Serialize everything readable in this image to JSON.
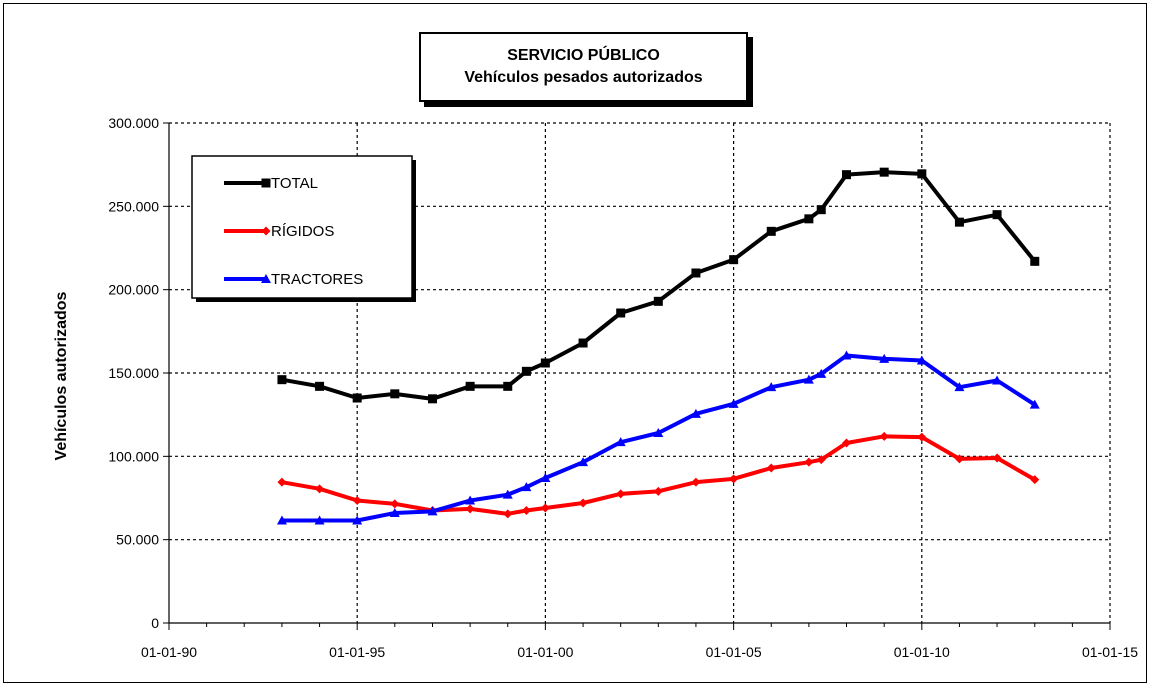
{
  "chart_data": {
    "type": "line",
    "title": "SERVICIO PÚBLICO",
    "subtitle": "Vehículos pesados autorizados",
    "ylabel": "Vehículos autorizados",
    "xlabel": "",
    "x_ticks": [
      "01-01-90",
      "01-01-95",
      "01-01-00",
      "01-01-05",
      "01-01-10",
      "01-01-15"
    ],
    "y_ticks": [
      "0",
      "50.000",
      "100.000",
      "150.000",
      "200.000",
      "250.000",
      "300.000"
    ],
    "xlim": [
      "1990-01-01",
      "2015-01-01"
    ],
    "ylim": [
      0,
      300000
    ],
    "grid": true,
    "legend_position": "top-left",
    "x": [
      "1993-01-01",
      "1994-01-01",
      "1995-01-01",
      "1996-01-01",
      "1997-01-01",
      "1998-01-01",
      "1999-01-01",
      "1999-07-01",
      "2000-01-01",
      "2001-01-01",
      "2002-01-01",
      "2003-01-01",
      "2004-01-01",
      "2005-01-01",
      "2006-01-01",
      "2007-01-01",
      "2007-05-01",
      "2008-01-01",
      "2009-01-01",
      "2010-01-01",
      "2011-01-01",
      "2012-01-01",
      "2013-01-01"
    ],
    "series": [
      {
        "name": "TOTAL",
        "color": "#000000",
        "marker": "square",
        "values": [
          146000,
          142000,
          135000,
          137500,
          134500,
          142000,
          142000,
          151000,
          156000,
          168000,
          186000,
          193000,
          210000,
          218000,
          235000,
          242500,
          248000,
          269000,
          270500,
          269500,
          240500,
          245000,
          217000
        ]
      },
      {
        "name": "RÍGIDOS",
        "color": "#ff0000",
        "marker": "diamond",
        "values": [
          84500,
          80500,
          73500,
          71500,
          67500,
          68500,
          65500,
          67500,
          69000,
          72000,
          77500,
          79000,
          84500,
          86500,
          93000,
          96500,
          98000,
          108000,
          112000,
          111500,
          98500,
          99000,
          86000
        ]
      },
      {
        "name": "TRACTORES",
        "color": "#0000ff",
        "marker": "triangle",
        "values": [
          61500,
          61500,
          61500,
          66000,
          67000,
          73500,
          77000,
          81500,
          87000,
          96500,
          108500,
          114000,
          125500,
          131500,
          141500,
          146000,
          149500,
          160500,
          158500,
          157500,
          141500,
          145500,
          131000
        ]
      }
    ]
  }
}
